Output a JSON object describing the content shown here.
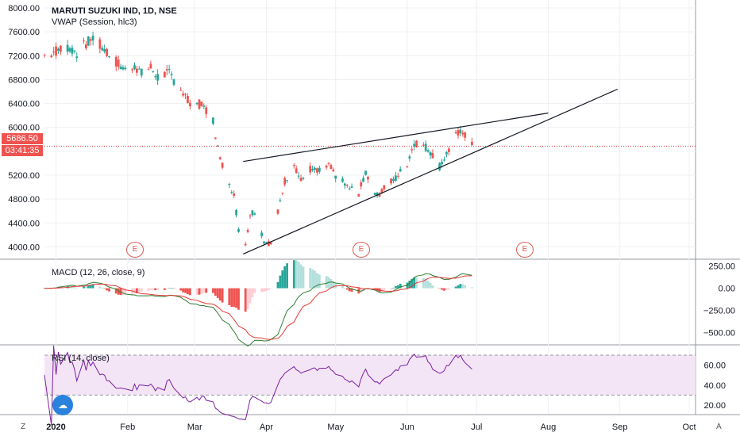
{
  "header": {
    "title": "MARUTI SUZUKI IND, 1D, NSE",
    "vwap": "VWAP (Session, hlc3)",
    "macd": "MACD (12, 26, close, 9)",
    "rsi": "RSI (14, close)"
  },
  "price_tag": {
    "price": "5686.50",
    "countdown": "03:41:35"
  },
  "earnings_label": "E",
  "corners": {
    "left": "Z",
    "right": "A"
  },
  "colors": {
    "up": "#26a69a",
    "down": "#ef5350",
    "macd": "#2e7d32",
    "signal": "#e53935",
    "rsi": "#7b1fa2",
    "rsi_band": "#f3e5f5",
    "earnings": "#e0584f",
    "trendline": "#131722",
    "price_line": "#e53935"
  },
  "chart_data": {
    "type": "candlestick",
    "price_axis": {
      "ticks": [
        4000,
        4400,
        4800,
        5200,
        5600,
        6000,
        6400,
        6800,
        7200,
        7600,
        8000
      ],
      "labels": [
        "4000.00",
        "4400.00",
        "4800.00",
        "5200.00",
        "5600.00",
        "6000.00",
        "6400.00",
        "6800.00",
        "7200.00",
        "7600.00",
        "8000.00"
      ],
      "range": [
        3820,
        8080
      ]
    },
    "time_axis": {
      "labels": [
        "2020",
        "Feb",
        "Mar",
        "Apr",
        "May",
        "Jun",
        "Jul",
        "Aug",
        "Sep",
        "Oct"
      ],
      "dates": [
        "2020-01-01",
        "2020-02-01",
        "2020-03-01",
        "2020-04-01",
        "2020-05-01",
        "2020-06-01",
        "2020-07-01",
        "2020-08-01",
        "2020-09-01",
        "2020-10-01"
      ]
    },
    "last_price": 5686.5,
    "close_series": {
      "dates": [
        "2019-12-27",
        "2020-01-02",
        "2020-01-06",
        "2020-01-10",
        "2020-01-14",
        "2020-01-17",
        "2020-01-22",
        "2020-01-27",
        "2020-01-31",
        "2020-02-04",
        "2020-02-07",
        "2020-02-11",
        "2020-02-14",
        "2020-02-19",
        "2020-02-24",
        "2020-02-27",
        "2020-03-02",
        "2020-03-05",
        "2020-03-09",
        "2020-03-12",
        "2020-03-16",
        "2020-03-18",
        "2020-03-20",
        "2020-03-23",
        "2020-03-25",
        "2020-03-27",
        "2020-03-31",
        "2020-04-03",
        "2020-04-07",
        "2020-04-09",
        "2020-04-13",
        "2020-04-16",
        "2020-04-20",
        "2020-04-23",
        "2020-04-28",
        "2020-05-01",
        "2020-05-06",
        "2020-05-11",
        "2020-05-14",
        "2020-05-19",
        "2020-05-22",
        "2020-05-27",
        "2020-06-01",
        "2020-06-04",
        "2020-06-08",
        "2020-06-11",
        "2020-06-15",
        "2020-06-18",
        "2020-06-22",
        "2020-06-25",
        "2020-06-29"
      ],
      "close": [
        7200,
        7300,
        7350,
        7250,
        7400,
        7500,
        7300,
        7100,
        6950,
        7050,
        6900,
        7000,
        6850,
        6900,
        6650,
        6450,
        6400,
        6350,
        6100,
        5450,
        5100,
        4850,
        4300,
        4050,
        4550,
        4600,
        4100,
        4050,
        4750,
        5100,
        5400,
        5100,
        5300,
        5250,
        5350,
        5200,
        5000,
        4900,
        5250,
        4850,
        5000,
        5150,
        5400,
        5750,
        5700,
        5600,
        5350,
        5550,
        5850,
        5950,
        5690
      ]
    },
    "trendlines": [
      {
        "from": {
          "date": "2020-03-22",
          "price": 5430
        },
        "to": {
          "date": "2020-08-01",
          "price": 6240
        }
      },
      {
        "from": {
          "date": "2020-03-22",
          "price": 3880
        },
        "to": {
          "date": "2020-08-31",
          "price": 6640
        }
      }
    ],
    "earnings_dates": [
      "2020-01-28",
      "2020-04-29",
      "2020-07-30"
    ],
    "macd": {
      "ticks": [
        250,
        0,
        -250,
        -500
      ],
      "labels": [
        "250.00",
        "0.00",
        "−250.00",
        "−500.00"
      ],
      "range": [
        -620,
        300
      ]
    },
    "rsi": {
      "ticks": [
        60,
        40,
        20
      ],
      "labels": [
        "60.00",
        "40.00",
        "20.00"
      ],
      "range": [
        12,
        78
      ],
      "band": [
        30,
        70
      ]
    }
  }
}
